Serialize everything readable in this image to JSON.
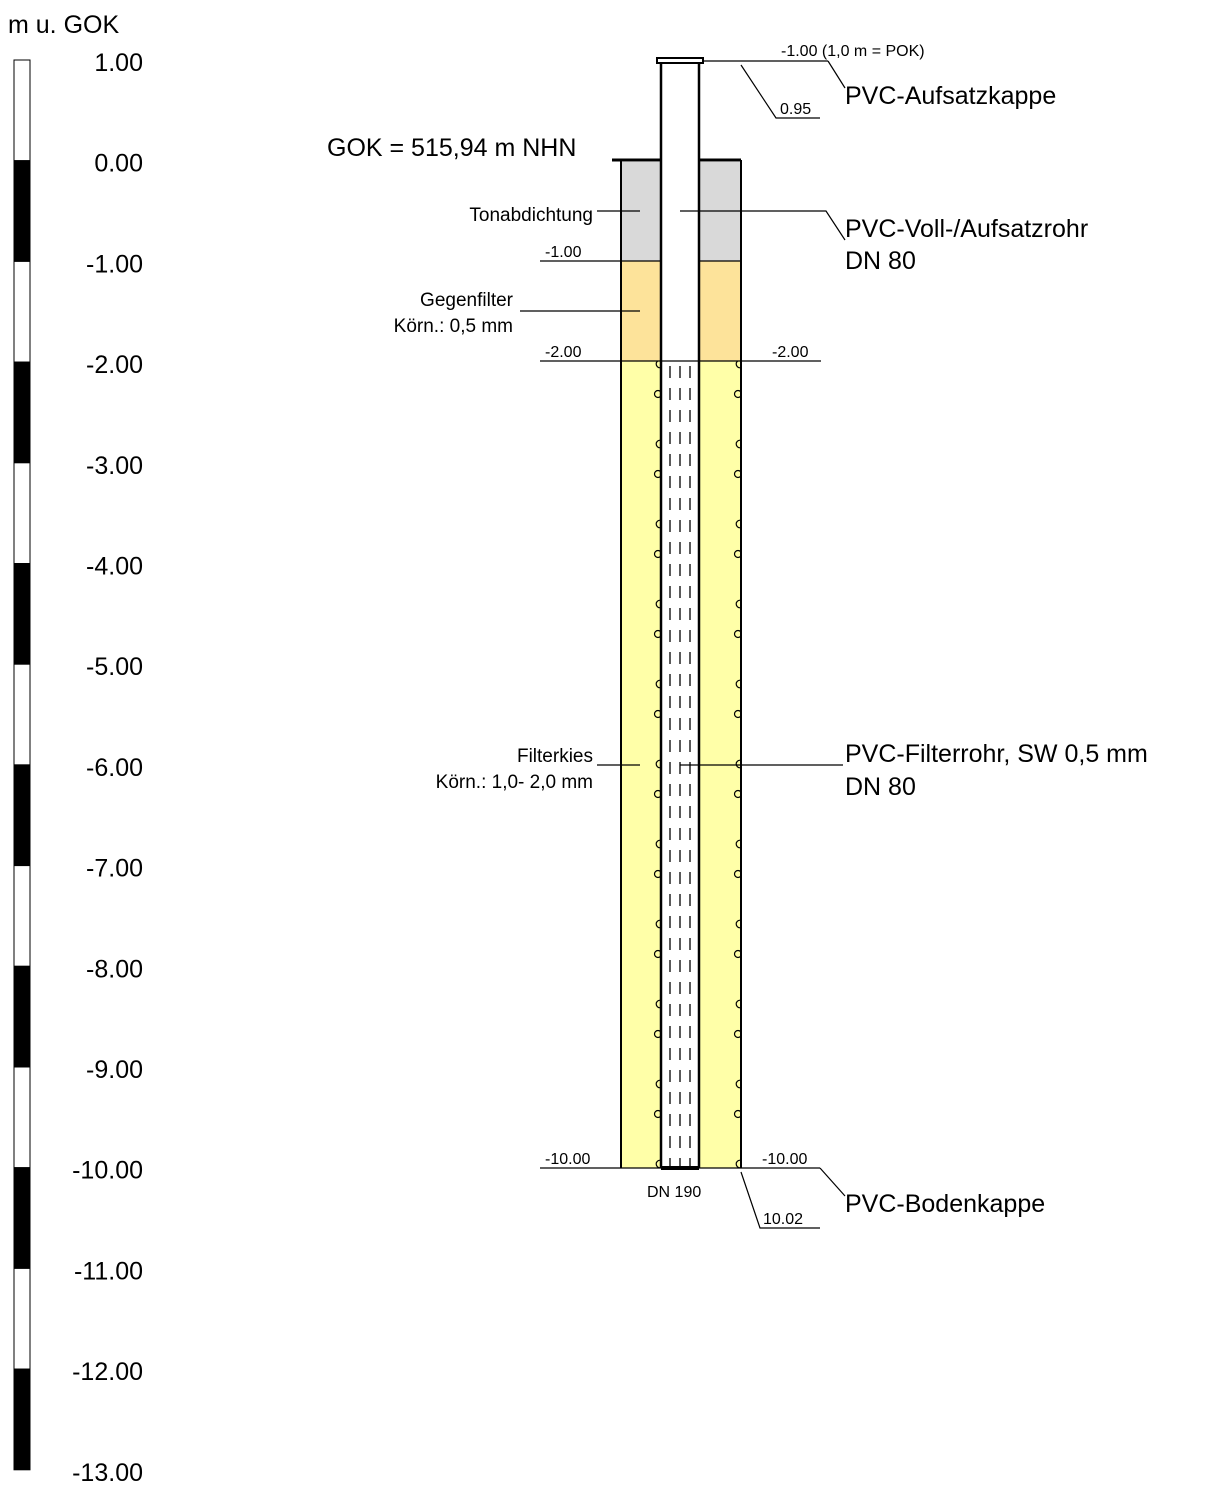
{
  "scale": {
    "unit_label": "m u. GOK",
    "ticks": [
      "1.00",
      "0.00",
      "-1.00",
      "-2.00",
      "-3.00",
      "-4.00",
      "-5.00",
      "-6.00",
      "-7.00",
      "-8.00",
      "-9.00",
      "-10.00",
      "-11.00",
      "-12.00",
      "-13.00"
    ]
  },
  "ground": {
    "label": "GOK = 515,94 m NHN"
  },
  "materials": {
    "tonabdichtung": {
      "label": "Tonabdichtung",
      "top": 0.0,
      "bottom": -1.0,
      "color": "#d9d9d9"
    },
    "gegenfilter": {
      "label_line1": "Gegenfilter",
      "label_line2": "Körn.: 0,5 mm",
      "top": -1.0,
      "bottom": -2.0,
      "color": "#fde39a"
    },
    "filterkies": {
      "label_line1": "Filterkies",
      "label_line2": "Körn.: 1,0- 2,0 mm",
      "top": -2.0,
      "bottom": -10.0,
      "color": "#ffffa8"
    }
  },
  "depth_marks": {
    "left_minus1": "-1.00",
    "left_minus2": "-2.00",
    "right_minus2": "-2.00",
    "left_minus10": "-10.00",
    "right_minus10": "-10.00",
    "top_pok": "-1.00 (1,0 m = POK)",
    "top_095": "0.95",
    "bottom_1002": "10.02"
  },
  "components": {
    "aufsatzkappe": "PVC-Aufsatzkappe",
    "vollrohr_line1": "PVC-Voll-/Aufsatzrohr",
    "vollrohr_line2": "DN 80",
    "filterrohr_line1": "PVC-Filterrohr, SW 0,5 mm",
    "filterrohr_line2": "DN 80",
    "bodenkappe": "PVC-Bodenkappe",
    "bore_diameter": "DN 190"
  }
}
